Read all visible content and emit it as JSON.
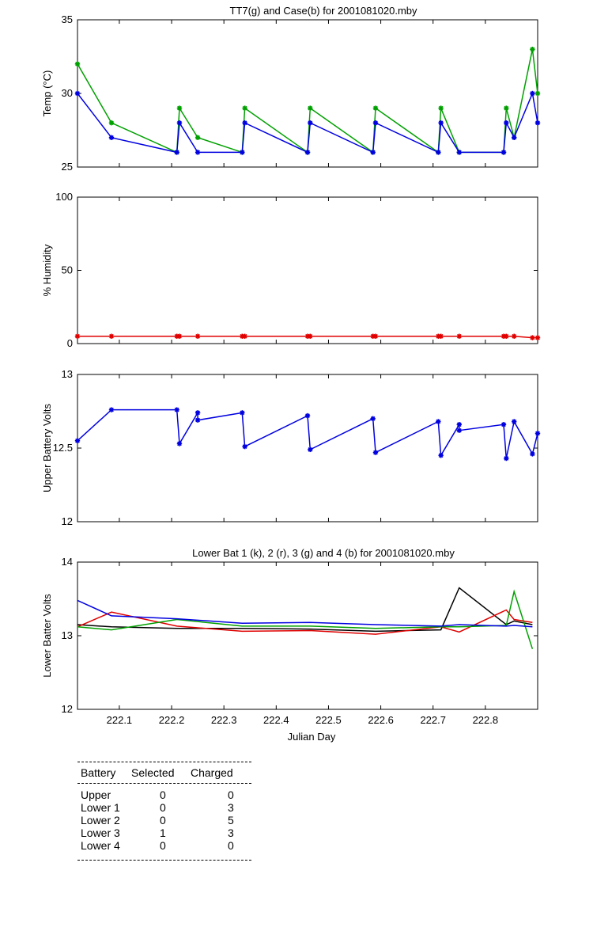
{
  "chart_data": [
    {
      "type": "line",
      "title": "TT7(g) and Case(b) for 2001081020.mby",
      "xlabel": "",
      "ylabel": "Temp  (°C)",
      "xlim": [
        222.02,
        222.9
      ],
      "ylim": [
        25,
        35
      ],
      "yticks": [
        "25",
        "30",
        "35"
      ],
      "grid": false,
      "series": [
        {
          "color": "#00a000",
          "marker": "*",
          "x": [
            222.02,
            222.085,
            222.21,
            222.215,
            222.25,
            222.335,
            222.34,
            222.46,
            222.465,
            222.585,
            222.59,
            222.71,
            222.715,
            222.75,
            222.835,
            222.84,
            222.855,
            222.89,
            222.9
          ],
          "y": [
            32,
            28,
            26,
            29,
            27,
            26,
            29,
            26,
            29,
            26,
            29,
            26,
            29,
            26,
            26,
            29,
            27,
            33,
            30
          ]
        },
        {
          "color": "#0000e0",
          "marker": "*",
          "x": [
            222.02,
            222.085,
            222.21,
            222.215,
            222.25,
            222.335,
            222.34,
            222.46,
            222.465,
            222.585,
            222.59,
            222.71,
            222.715,
            222.75,
            222.835,
            222.84,
            222.855,
            222.89,
            222.9
          ],
          "y": [
            30,
            27,
            26,
            28,
            26,
            26,
            28,
            26,
            28,
            26,
            28,
            26,
            28,
            26,
            26,
            28,
            27,
            30,
            28
          ]
        }
      ]
    },
    {
      "type": "line",
      "title": "",
      "xlabel": "",
      "ylabel": "% Humidity",
      "xlim": [
        222.02,
        222.9
      ],
      "ylim": [
        0,
        100
      ],
      "yticks": [
        "0",
        "50",
        "100"
      ],
      "grid": false,
      "series": [
        {
          "color": "#e00000",
          "marker": "*",
          "x": [
            222.02,
            222.085,
            222.21,
            222.215,
            222.25,
            222.335,
            222.34,
            222.46,
            222.465,
            222.585,
            222.59,
            222.71,
            222.715,
            222.75,
            222.835,
            222.84,
            222.855,
            222.89,
            222.9
          ],
          "y": [
            5,
            5,
            5,
            5,
            5,
            5,
            5,
            5,
            5,
            5,
            5,
            5,
            5,
            5,
            5,
            5,
            5,
            4,
            4
          ]
        }
      ]
    },
    {
      "type": "line",
      "title": "",
      "xlabel": "",
      "ylabel": "Upper Battery Volts",
      "xlim": [
        222.02,
        222.9
      ],
      "ylim": [
        12,
        13
      ],
      "yticks": [
        "12",
        "12.5",
        "13"
      ],
      "grid": false,
      "series": [
        {
          "color": "#0000e0",
          "marker": "*",
          "x": [
            222.02,
            222.085,
            222.21,
            222.215,
            222.25,
            222.25,
            222.335,
            222.34,
            222.46,
            222.465,
            222.585,
            222.59,
            222.71,
            222.715,
            222.75,
            222.75,
            222.835,
            222.84,
            222.855,
            222.89,
            222.9
          ],
          "y": [
            12.55,
            12.76,
            12.76,
            12.53,
            12.74,
            12.69,
            12.74,
            12.51,
            12.72,
            12.49,
            12.7,
            12.47,
            12.68,
            12.45,
            12.66,
            12.62,
            12.66,
            12.43,
            12.68,
            12.46,
            12.6
          ]
        }
      ]
    },
    {
      "type": "line",
      "title": "Lower Bat 1 (k), 2 (r), 3 (g) and 4 (b) for 2001081020.mby",
      "xlabel": "Julian Day",
      "ylabel": "Lower Batter Volts",
      "xlim": [
        222.02,
        222.9
      ],
      "ylim": [
        12,
        14
      ],
      "yticks": [
        "12",
        "13",
        "14"
      ],
      "xticks": [
        "222.1",
        "222.2",
        "222.3",
        "222.4",
        "222.5",
        "222.6",
        "222.7",
        "222.8"
      ],
      "grid": false,
      "series": [
        {
          "color": "#000000",
          "x": [
            222.02,
            222.085,
            222.21,
            222.335,
            222.465,
            222.59,
            222.715,
            222.75,
            222.84,
            222.855,
            222.89
          ],
          "y": [
            13.15,
            13.12,
            13.1,
            13.1,
            13.09,
            13.06,
            13.08,
            13.65,
            13.15,
            13.2,
            13.15
          ]
        },
        {
          "color": "#e00000",
          "x": [
            222.02,
            222.085,
            222.21,
            222.335,
            222.465,
            222.59,
            222.715,
            222.75,
            222.84,
            222.855,
            222.89
          ],
          "y": [
            13.12,
            13.32,
            13.13,
            13.06,
            13.07,
            13.02,
            13.12,
            13.05,
            13.35,
            13.22,
            13.18
          ]
        },
        {
          "color": "#00a000",
          "x": [
            222.02,
            222.085,
            222.21,
            222.335,
            222.465,
            222.59,
            222.715,
            222.75,
            222.84,
            222.855,
            222.89
          ],
          "y": [
            13.12,
            13.08,
            13.22,
            13.13,
            13.13,
            13.1,
            13.12,
            13.12,
            13.14,
            13.6,
            12.82
          ]
        },
        {
          "color": "#0000e0",
          "x": [
            222.02,
            222.085,
            222.21,
            222.335,
            222.465,
            222.59,
            222.715,
            222.75,
            222.84,
            222.855,
            222.89
          ],
          "y": [
            13.48,
            13.27,
            13.23,
            13.17,
            13.18,
            13.15,
            13.13,
            13.15,
            13.13,
            13.14,
            13.12
          ]
        }
      ]
    }
  ],
  "table": {
    "headers": [
      "Battery",
      "Selected",
      "Charged"
    ],
    "rows": [
      [
        "Upper",
        "0",
        "0"
      ],
      [
        "Lower 1",
        "0",
        "3"
      ],
      [
        "Lower 2",
        "0",
        "5"
      ],
      [
        "Lower 3",
        "1",
        "3"
      ],
      [
        "Lower 4",
        "0",
        "0"
      ]
    ]
  }
}
